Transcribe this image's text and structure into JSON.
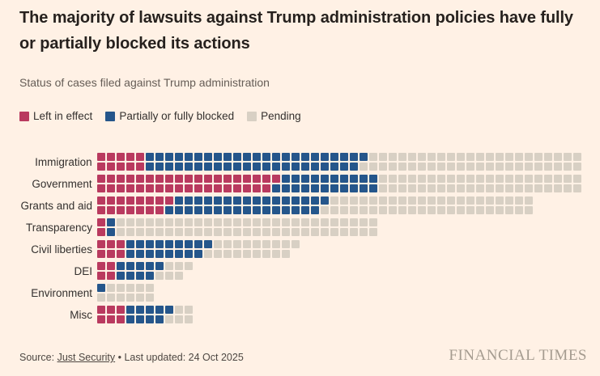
{
  "header": {
    "title": "The majority of lawsuits against Trump administration policies have fully or partially blocked its actions",
    "subtitle": "Status of cases filed against Trump administration"
  },
  "legend": {
    "items": [
      {
        "key": "left_in_effect",
        "label": "Left in effect",
        "color": "#b93a5f"
      },
      {
        "key": "blocked",
        "label": "Partially or fully blocked",
        "color": "#25568b"
      },
      {
        "key": "pending",
        "label": "Pending",
        "color": "#d8d0c4"
      }
    ]
  },
  "chart_data": {
    "type": "waffle",
    "rows_per_category": 2,
    "fill_order": "column-major, status order: left_in_effect, blocked, pending",
    "colors": {
      "left_in_effect": "#b93a5f",
      "blocked": "#25568b",
      "pending": "#d8d0c4"
    },
    "series_order": [
      "left_in_effect",
      "blocked",
      "pending"
    ],
    "categories": [
      {
        "label": "Immigration",
        "left_in_effect": 10,
        "blocked": 45,
        "pending": 45,
        "total": 100
      },
      {
        "label": "Government",
        "left_in_effect": 37,
        "blocked": 21,
        "pending": 42,
        "total": 100
      },
      {
        "label": "Grants and aid",
        "left_in_effect": 15,
        "blocked": 32,
        "pending": 43,
        "total": 90
      },
      {
        "label": "Transparency",
        "left_in_effect": 2,
        "blocked": 2,
        "pending": 54,
        "total": 58
      },
      {
        "label": "Civil liberties",
        "left_in_effect": 6,
        "blocked": 17,
        "pending": 18,
        "total": 41
      },
      {
        "label": "DEI",
        "left_in_effect": 4,
        "blocked": 9,
        "pending": 6,
        "total": 19
      },
      {
        "label": "Environment",
        "left_in_effect": 0,
        "blocked": 1,
        "pending": 11,
        "total": 12
      },
      {
        "label": "Misc",
        "left_in_effect": 6,
        "blocked": 9,
        "pending": 5,
        "total": 20
      }
    ]
  },
  "footer": {
    "source_prefix": "Source: ",
    "source_link": "Just Security",
    "separator": " • ",
    "updated": "Last updated: 24 Oct 2025",
    "brand": "FINANCIAL TIMES"
  }
}
